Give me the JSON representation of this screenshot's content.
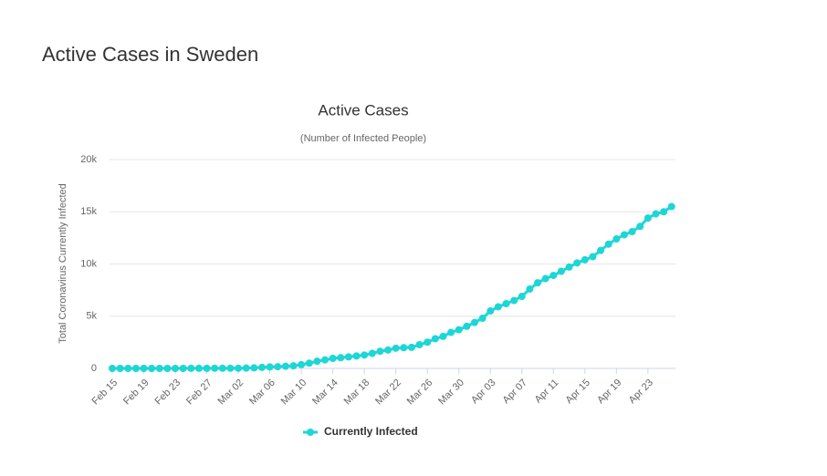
{
  "page_title": "Active Cases in Sweden",
  "chart_data": {
    "type": "line",
    "title": "Active Cases",
    "subtitle": "(Number of Infected People)",
    "y_label": "Total Coronavirus Currently Infected",
    "categories": [
      "Feb 15",
      null,
      null,
      null,
      "Feb 19",
      null,
      null,
      null,
      "Feb 23",
      null,
      null,
      null,
      "Feb 27",
      null,
      null,
      null,
      "Mar 02",
      null,
      null,
      null,
      "Mar 06",
      null,
      null,
      null,
      "Mar 10",
      null,
      null,
      null,
      "Mar 14",
      null,
      null,
      null,
      "Mar 18",
      null,
      null,
      null,
      "Mar 22",
      null,
      null,
      null,
      "Mar 26",
      null,
      null,
      null,
      "Mar 30",
      null,
      null,
      null,
      "Apr 03",
      null,
      null,
      null,
      "Apr 07",
      null,
      null,
      null,
      "Apr 11",
      null,
      null,
      null,
      "Apr 15",
      null,
      null,
      null,
      "Apr 19",
      null,
      null,
      null,
      "Apr 23",
      null,
      null,
      null
    ],
    "series": [
      {
        "name": "Currently Infected",
        "color": "#1dd6d6",
        "values": [
          1,
          1,
          1,
          1,
          1,
          1,
          1,
          1,
          1,
          1,
          7,
          7,
          12,
          14,
          14,
          15,
          15,
          30,
          52,
          94,
          137,
          161,
          203,
          248,
          355,
          500,
          687,
          814,
          961,
          1022,
          1103,
          1190,
          1279,
          1439,
          1639,
          1763,
          1934,
          1985,
          2016,
          2272,
          2510,
          2840,
          3069,
          3447,
          3700,
          4028,
          4400,
          4800,
          5500,
          5900,
          6200,
          6500,
          6900,
          7600,
          8200,
          8600,
          8900,
          9300,
          9700,
          10100,
          10400,
          10700,
          11300,
          11900,
          12400,
          12800,
          13100,
          13600,
          14400,
          14800,
          15000,
          15500
        ]
      }
    ],
    "ylim": [
      0,
      20000
    ],
    "yticks": [
      0,
      {
        "value": 5000,
        "label": "5k"
      },
      {
        "value": 10000,
        "label": "10k"
      },
      {
        "value": 15000,
        "label": "15k"
      },
      {
        "value": 20000,
        "label": "20k"
      }
    ],
    "grid": true,
    "legend": "bottom"
  }
}
